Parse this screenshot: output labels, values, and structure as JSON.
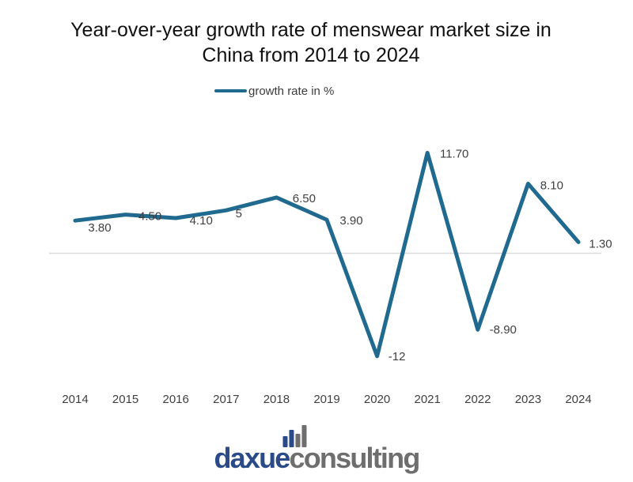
{
  "title": {
    "line1": "Year-over-year growth rate of menswear market size in",
    "line2": "China from 2014 to 2024"
  },
  "legend": {
    "label": "growth rate in %"
  },
  "chart_data": {
    "type": "line",
    "title": "Year-over-year growth rate of menswear market size in China from 2014 to 2024",
    "categories": [
      "2014",
      "2015",
      "2016",
      "2017",
      "2018",
      "2019",
      "2020",
      "2021",
      "2022",
      "2023",
      "2024"
    ],
    "series": [
      {
        "name": "growth rate in %",
        "values": [
          3.8,
          4.5,
          4.1,
          5,
          6.5,
          3.9,
          -12,
          11.7,
          -8.9,
          8.1,
          1.3
        ]
      }
    ],
    "point_labels": [
      "3.80",
      "4.50",
      "4.10",
      "5",
      "6.50",
      "3.90",
      "-12",
      "11.70",
      "-8.90",
      "8.10",
      "1.30"
    ],
    "xlabel": "",
    "ylabel": "",
    "ylim": [
      -14,
      13
    ],
    "grid": "zero-baseline only, no y-axis shown",
    "legend_position": "top-center",
    "line_color": "#1F6A8E",
    "zero_line_color": "#D9D9D9",
    "label_color": "#3F3F3F"
  },
  "logo": {
    "part1": "daxue",
    "part2": "consulting",
    "icon": "bar-chart-icon",
    "part1_color": "#2A4B87",
    "part2_color": "#6E6E6E"
  }
}
